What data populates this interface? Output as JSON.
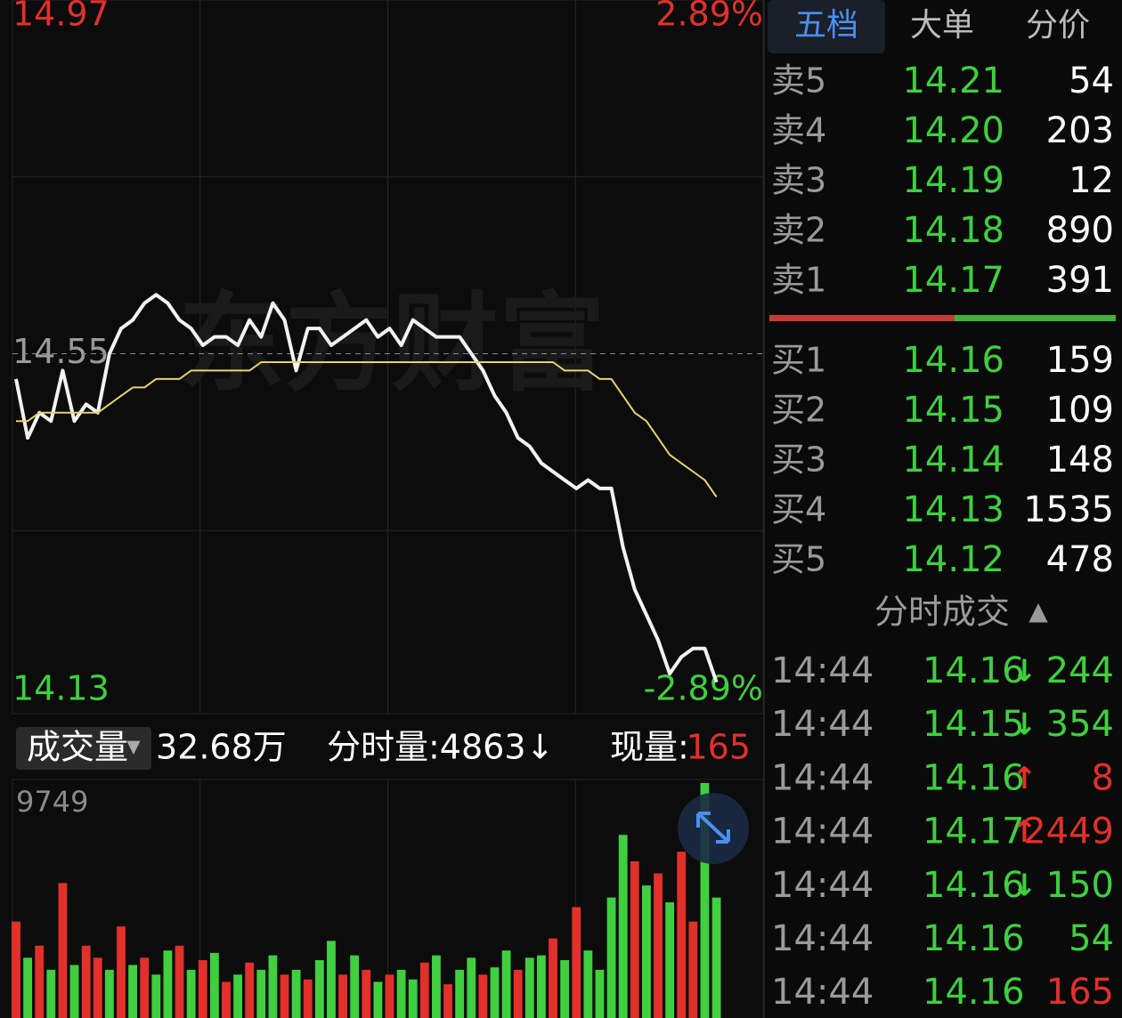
{
  "chart_data": [
    {
      "type": "line",
      "ylim": [
        14.13,
        14.97
      ],
      "yticks": [
        14.97,
        14.55,
        14.13
      ],
      "y2lim": [
        -2.89,
        2.89
      ],
      "y2ticks": [
        {
          "value": 2.89,
          "label": "2.89%"
        },
        {
          "value": -2.89,
          "label": "-2.89%"
        }
      ],
      "watermark": "东方财富",
      "series": [
        {
          "color": "#f2f2f2",
          "values": [
            14.52,
            14.45,
            14.48,
            14.47,
            14.53,
            14.47,
            14.49,
            14.48,
            14.55,
            14.58,
            14.59,
            14.61,
            14.62,
            14.61,
            14.59,
            14.58,
            14.56,
            14.57,
            14.57,
            14.56,
            14.59,
            14.57,
            14.61,
            14.59,
            14.53,
            14.58,
            14.58,
            14.56,
            14.57,
            14.58,
            14.59,
            14.57,
            14.58,
            14.56,
            14.59,
            14.58,
            14.57,
            14.57,
            14.57,
            14.55,
            14.53,
            14.5,
            14.48,
            14.45,
            14.44,
            14.42,
            14.41,
            14.4,
            14.39,
            14.4,
            14.39,
            14.39,
            14.32,
            14.27,
            14.24,
            14.21,
            14.17,
            14.19,
            14.2,
            14.2,
            14.16,
            null,
            null,
            null
          ]
        },
        {
          "color": "#e8d36a",
          "values": [
            14.47,
            14.47,
            14.48,
            14.48,
            14.48,
            14.48,
            14.48,
            14.48,
            14.49,
            14.5,
            14.51,
            14.51,
            14.52,
            14.52,
            14.52,
            14.53,
            14.53,
            14.53,
            14.53,
            14.53,
            14.53,
            14.54,
            14.54,
            14.54,
            14.54,
            14.54,
            14.54,
            14.54,
            14.54,
            14.54,
            14.54,
            14.54,
            14.54,
            14.54,
            14.54,
            14.54,
            14.54,
            14.54,
            14.54,
            14.54,
            14.54,
            14.54,
            14.54,
            14.54,
            14.54,
            14.54,
            14.54,
            14.53,
            14.53,
            14.53,
            14.52,
            14.52,
            14.5,
            14.48,
            14.47,
            14.45,
            14.43,
            14.42,
            14.41,
            14.4,
            14.38,
            null,
            null,
            null
          ]
        }
      ]
    },
    {
      "type": "bar",
      "ylim": [
        0,
        9749
      ],
      "yticks": [
        9749
      ],
      "values": [
        4000,
        2500,
        3000,
        2000,
        5600,
        2200,
        3000,
        2500,
        2000,
        3800,
        2200,
        2500,
        1800,
        2800,
        3000,
        2000,
        2400,
        2700,
        1500,
        1800,
        2300,
        2000,
        2600,
        1800,
        2000,
        1600,
        2400,
        3200,
        1800,
        2600,
        2000,
        1500,
        1800,
        2000,
        1600,
        2300,
        2600,
        1400,
        2000,
        2500,
        1800,
        2100,
        2800,
        2000,
        2500,
        2600,
        3300,
        2400,
        4600,
        2800,
        2000,
        5000,
        7600,
        6500,
        5500,
        6000,
        4800,
        6900,
        4000,
        9749,
        5000,
        null,
        null,
        null
      ],
      "colors": [
        "#e2302a",
        "#3fcf3f",
        "#e2302a",
        "#3fcf3f",
        "#e2302a",
        "#3fcf3f",
        "#e2302a",
        "#e2302a",
        "#3fcf3f",
        "#e2302a",
        "#3fcf3f",
        "#e2302a",
        "#3fcf3f",
        "#3fcf3f",
        "#e2302a",
        "#3fcf3f",
        "#e2302a",
        "#3fcf3f",
        "#e2302a",
        "#3fcf3f",
        "#e2302a",
        "#3fcf3f",
        "#3fcf3f",
        "#e2302a",
        "#3fcf3f",
        "#e2302a",
        "#3fcf3f",
        "#3fcf3f",
        "#e2302a",
        "#3fcf3f",
        "#e2302a",
        "#3fcf3f",
        "#e2302a",
        "#3fcf3f",
        "#3fcf3f",
        "#e2302a",
        "#3fcf3f",
        "#e2302a",
        "#3fcf3f",
        "#3fcf3f",
        "#e2302a",
        "#3fcf3f",
        "#3fcf3f",
        "#e2302a",
        "#3fcf3f",
        "#3fcf3f",
        "#e2302a",
        "#3fcf3f",
        "#e2302a",
        "#3fcf3f",
        "#3fcf3f",
        "#3fcf3f",
        "#3fcf3f",
        "#e2302a",
        "#3fcf3f",
        "#e2302a",
        "#3fcf3f",
        "#e2302a",
        "#e2302a",
        "#3fcf3f",
        "#3fcf3f",
        "#3fcf3f",
        "#3fcf3f",
        "#3fcf3f"
      ]
    }
  ],
  "toolbar": {
    "indicator": "成交量",
    "total": "32.68万",
    "minute_volume": "分时量:4863↓",
    "current_label": "现量:",
    "current_value": "165"
  },
  "order_book": {
    "tabs": [
      "五档",
      "大单",
      "分价"
    ],
    "asks": [
      {
        "label": "卖5",
        "price": "14.21",
        "volume": "54"
      },
      {
        "label": "卖4",
        "price": "14.20",
        "volume": "203"
      },
      {
        "label": "卖3",
        "price": "14.19",
        "volume": "12"
      },
      {
        "label": "卖2",
        "price": "14.18",
        "volume": "890"
      },
      {
        "label": "卖1",
        "price": "14.17",
        "volume": "391"
      }
    ],
    "bids": [
      {
        "label": "买1",
        "price": "14.16",
        "volume": "159"
      },
      {
        "label": "买2",
        "price": "14.15",
        "volume": "109"
      },
      {
        "label": "买3",
        "price": "14.14",
        "volume": "148"
      },
      {
        "label": "买4",
        "price": "14.13",
        "volume": "1535"
      },
      {
        "label": "买5",
        "price": "14.12",
        "volume": "478"
      }
    ]
  },
  "trades": {
    "title": "分时成交",
    "rows": [
      {
        "time": "14:44",
        "price": "14.16",
        "arrow": "↓",
        "volume": "244",
        "color": "#3fcf3f"
      },
      {
        "time": "14:44",
        "price": "14.15",
        "arrow": "↓",
        "volume": "354",
        "color": "#3fcf3f"
      },
      {
        "time": "14:44",
        "price": "14.16",
        "arrow": "↑",
        "volume": "8",
        "color": "#e2302a"
      },
      {
        "time": "14:44",
        "price": "14.17",
        "arrow": "↑",
        "volume": "2449",
        "color": "#e2302a"
      },
      {
        "time": "14:44",
        "price": "14.16",
        "arrow": "↓",
        "volume": "150",
        "color": "#3fcf3f"
      },
      {
        "time": "14:44",
        "price": "14.16",
        "volume": "54",
        "color": "#3fcf3f"
      },
      {
        "time": "14:44",
        "price": "14.16",
        "volume": "165",
        "color": "#e2302a"
      }
    ]
  }
}
